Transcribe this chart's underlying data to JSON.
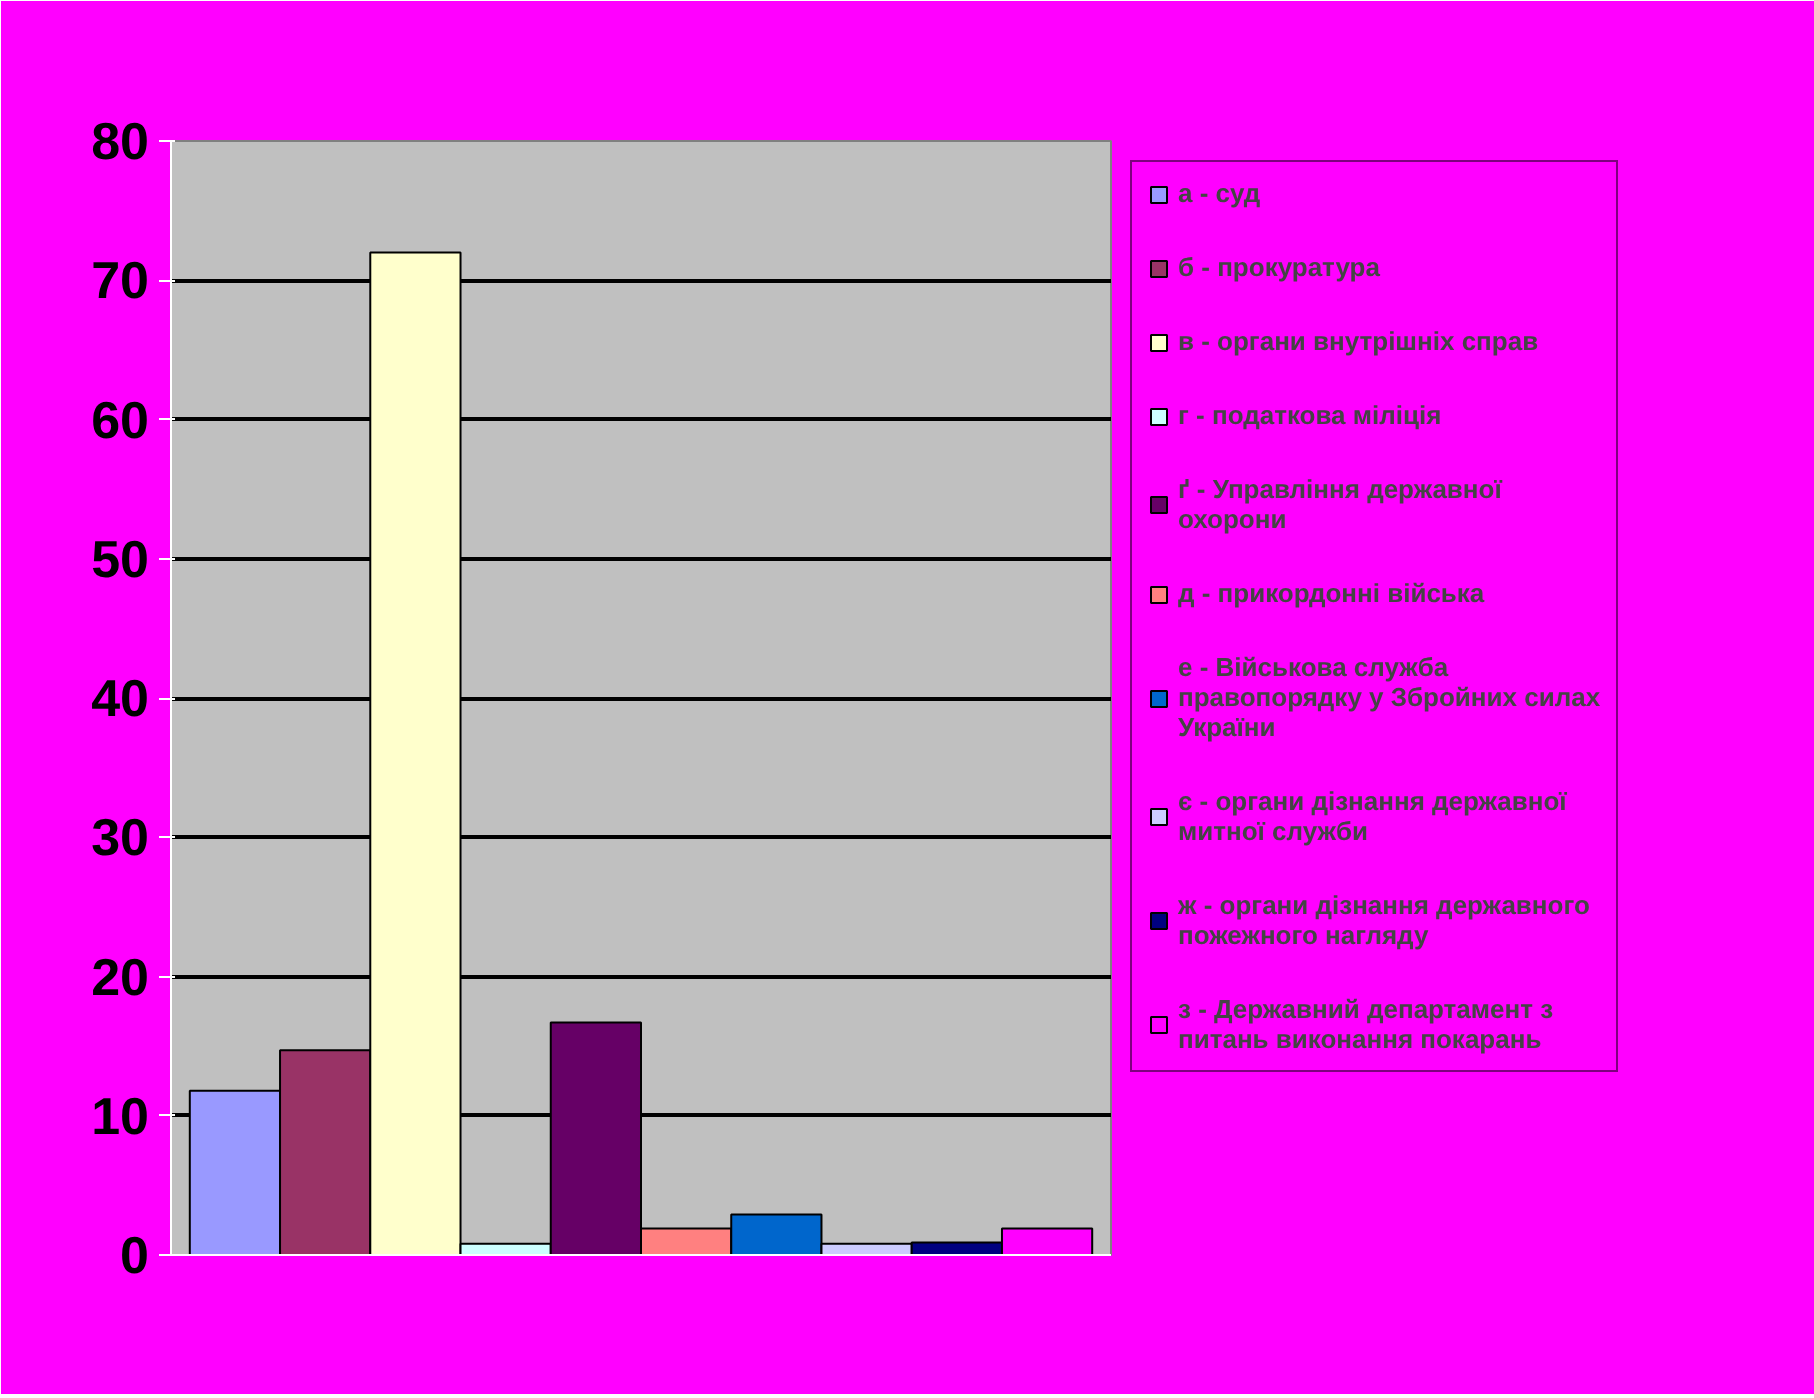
{
  "chart_data": {
    "type": "bar",
    "categories": [
      null
    ],
    "series": [
      {
        "name": "а - суд",
        "color": "#9999ff",
        "values": [
          11.8
        ]
      },
      {
        "name": "б - прокуратура",
        "color": "#993366",
        "values": [
          14.7
        ]
      },
      {
        "name": "в - органи внутрішніх справ",
        "color": "#ffffcc",
        "values": [
          72
        ]
      },
      {
        "name": "г - податкова міліція",
        "color": "#ccffff",
        "values": [
          0.8
        ]
      },
      {
        "name": "ґ - Управління державної охорони",
        "color": "#660066",
        "values": [
          16.7
        ]
      },
      {
        "name": "д - прикордонні війська",
        "color": "#ff8080",
        "values": [
          1.9
        ]
      },
      {
        "name": "е - Військова служба правопорядку у Збройних силах України",
        "color": "#0066cc",
        "values": [
          2.9
        ]
      },
      {
        "name": "є - органи дізнання державної митної служби",
        "color": "#ccccff",
        "values": [
          0.8
        ]
      },
      {
        "name": "ж - органи дізнання державного пожежного нагляду",
        "color": "#000080",
        "values": [
          0.9
        ]
      },
      {
        "name": "з - Державний департамент з питань виконання покарань",
        "color": "#ff00ff",
        "values": [
          1.9
        ]
      }
    ],
    "ylim": [
      0,
      80
    ],
    "yticks": [
      0,
      10,
      20,
      30,
      40,
      50,
      60,
      70,
      80
    ],
    "grid": "y",
    "legend": "right"
  }
}
